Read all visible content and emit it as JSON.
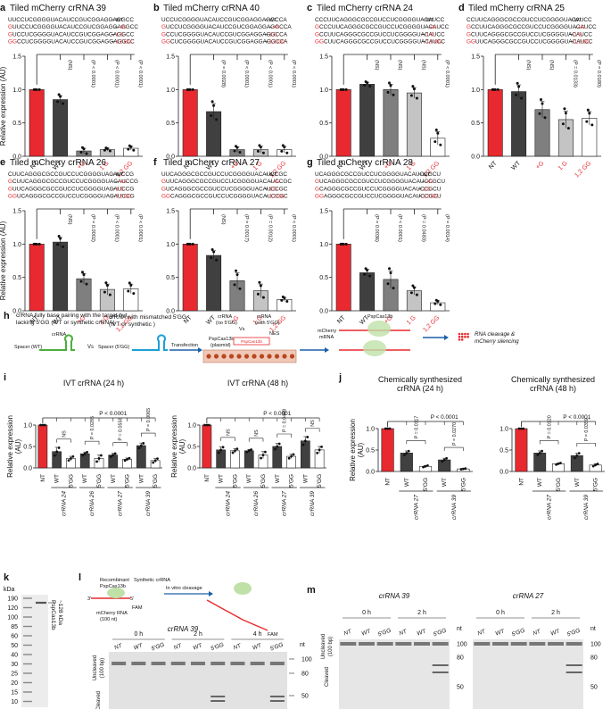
{
  "labels": {
    "wt": "WT",
    "g": "+G",
    "g1": "1 G",
    "g12": "1,2 GG",
    "nt": "NT",
    "ns": "NS",
    "ylab": "Relative expression (AU)",
    "ylab2": "Relative expression",
    "au": "(AU)"
  },
  "colors": {
    "red": "#e8292f",
    "dark": "#404040",
    "mid": "#7f7f7f",
    "light": "#c4c4c4",
    "white": "#ffffff",
    "seqred": "#e8292f",
    "diagblue": "#1aa0d8",
    "diaggreen": "#4caf3c"
  },
  "panels_top": [
    {
      "letter": "a",
      "title": "Tiled mCherry crRNA 39",
      "seqs": [
        "UUCCUCGGGGUACAUCCGUCGGAGGAGGCC",
        "GUUCCUCGGGGUACAUCCGUCGGAGGAGGCC",
        "GUCCUCGGGGUACAUCCGUCGGAGGAGGCC",
        "GGCCUCGGGGUACAUCCGUCGGAGGAGGCC"
      ],
      "values": [
        1.0,
        0.85,
        0.08,
        0.1,
        0.12
      ],
      "err": [
        0,
        0.06,
        0.04,
        0.02,
        0.03
      ],
      "pvals": [
        "(NS)",
        "(P < 0.0001)",
        "(P < 0.0001)",
        "(P < 0.0001)"
      ]
    },
    {
      "letter": "b",
      "title": "Tiled mCherry crRNA 40",
      "seqs": [
        "UCCUCGGGGUACAUCCGUCGGAGGAGGCCA",
        "GUCCUCGGGGUACAUCCGUCGGAGGAGGCCA",
        "GCCUCGGGGUACAUCCGUCGGAGGAGGCCA",
        "GGCUCGGGGUACAUCCGUCGGAGGAGGCCA"
      ],
      "values": [
        1.0,
        0.67,
        0.1,
        0.1,
        0.1
      ],
      "err": [
        0,
        0.12,
        0.04,
        0.05,
        0.05
      ],
      "pvals": [
        "(P = 0.0028)",
        "(P < 0.0001)",
        "(P < 0.0001)",
        "(P < 0.0001)"
      ]
    },
    {
      "letter": "c",
      "title": "Tiled mCherry crRNA 24",
      "seqs": [
        "CCCUUCAGGGCGCCGUCCUCGGGGUACAUCC",
        "GCCCUUCAGGGCGCCGUCCUCGGGGUACAUCC",
        "GCCUUCAGGGCGCCGUCCUCGGGGUACAUCC",
        "GGCUUCAGGGCGCCGUCCUCGGGGUACAUCC"
      ],
      "values": [
        1.0,
        1.08,
        1.0,
        0.95,
        0.27
      ],
      "err": [
        0,
        0.03,
        0.08,
        0.08,
        0.1
      ],
      "pvals": [
        "(NS)",
        "(NS)",
        "(NS)",
        "(P < 0.0001)"
      ]
    },
    {
      "letter": "d",
      "title": "Tiled mCherry crRNA 25",
      "seqs": [
        "CCUUCAGGGCGCCGUCCUCGGGGUACAUCC",
        "GCCUUCAGGGCGCCGUCCUCGGGGUACAUCC",
        "GCUUCAGGGCGCCGUCCUCGGGGUACAUCC",
        "GGUUCAGGGCGCCGUCCUCGGGGUACAUCC"
      ],
      "values": [
        1.0,
        0.97,
        0.7,
        0.55,
        0.57
      ],
      "err": [
        0,
        0.1,
        0.12,
        0.13,
        0.1
      ],
      "pvals": [
        "(NS)",
        "(NS)",
        "(P = 0.0133)",
        "(P = 0.0180)"
      ]
    }
  ],
  "panels_mid": [
    {
      "letter": "e",
      "title": "Tiled mCherry crRNA 26",
      "seqs": [
        "CUUCAGGGCGCCGUCCUCGGGGUACAUCCG",
        "GCUUCAGGGCGCCGUCCUCGGGGUACAUCCG",
        "GUUCAGGGCGCCGUCCUCGGGGUACAUCCG",
        "GGUCAGGGCGCCGUCCUCGGGGUACAUCCG"
      ],
      "values": [
        1.0,
        1.03,
        0.48,
        0.32,
        0.33
      ],
      "err": [
        0,
        0.07,
        0.08,
        0.08,
        0.07
      ],
      "pvals": [
        "(NS)",
        "(P = 0.0002)",
        "(P < 0.0001)",
        "(P < 0.0001)"
      ]
    },
    {
      "letter": "f",
      "title": "Tiled mCherry crRNA 27",
      "seqs": [
        "UUCAGGGCGCCGUCCUCGGGGUACAUCCGC",
        "GUUCAGGGCGCCGUCCUCGGGGUACAUCCGC",
        "GUCAGGGCGCCGUCCUCGGGGUACAUCCGC",
        "GGCAGGGCGCCGUCCUCGGGGUACAUCCGC"
      ],
      "values": [
        1.0,
        0.83,
        0.45,
        0.3,
        0.17
      ],
      "err": [
        0,
        0.07,
        0.12,
        0.1,
        0.03
      ],
      "pvals": [
        "(NS)",
        "(P = 0.0017)",
        "(P = 0.0012)",
        "(P < 0.0001)"
      ]
    },
    {
      "letter": "g",
      "title": "Tiled mCherry crRNA 28",
      "seqs": [
        "UCAGGGCGCCGUCCUCGGGGUACAUCCGCU",
        "GUCAGGGCGCCGUCCUCGGGGUACAUCCGCU",
        "GCAGGGCGCCGUCCUCGGGGUACAUCCGCU",
        "GGAGGGCGCCGUCCUCGGGGUACAUCCGCU"
      ],
      "values": [
        1.0,
        0.57,
        0.47,
        0.3,
        0.12
      ],
      "err": [
        0,
        0.05,
        0.13,
        0.06,
        0.03
      ],
      "pvals": [
        "(P = 0.0036)",
        "(P < 0.0001)",
        "(P = 0.0483)",
        "(P = 0.0014)"
      ]
    }
  ],
  "panel_h": {
    "letter": "h",
    "t1": "crRNA fully base pairing with the target but",
    "t2": "lacking  5'GG (IVT or synthetic crRNA)",
    "t3": "crRNA with mismatched 5'GG",
    "t4": "(IVT or synthetic )",
    "spacer_wt": "Spacer (WT)",
    "crrna": "crRNA",
    "vs": "Vs",
    "spacer_gg": "Spacer (5'GG)",
    "transfection": "Transfection",
    "plasmid1": "PspCas13b",
    "plasmid2": "(plasmid)",
    "nogg1": "crRNA",
    "nogg2": "(no 5'GG)",
    "withgg1": "crRNA",
    "withgg2": "(with 5'GG)",
    "nes": "NES",
    "cas": "PspCas13b",
    "mch1": "mCherry",
    "mch2": "mRNA",
    "out1": "RNA cleavage &",
    "out2": "mCherry silencing",
    "pspbox": "PspCas13b"
  },
  "panel_i": {
    "letter": "i",
    "charts": [
      {
        "title": "IVT crRNA (24 h)",
        "groups": [
          "crRNA 24",
          "crRNA 26",
          "crRNA 27",
          "crRNA 39"
        ],
        "values": [
          1.0,
          0.38,
          0.22,
          0.33,
          0.22,
          0.3,
          0.2,
          0.52,
          0.17
        ],
        "err": [
          0,
          0.1,
          0.05,
          0.04,
          0.08,
          0.04,
          0.03,
          0.06,
          0.05
        ],
        "pvals": [
          "NS",
          "P = 0.0285",
          "P = 0.0558",
          "P = 0.0065"
        ],
        "big": "P < 0.0001"
      },
      {
        "title": "IVT crRNA (48 h)",
        "groups": [
          "crRNA 24",
          "crRNA 26",
          "crRNA 27",
          "crRNA 39"
        ],
        "values": [
          1.0,
          0.42,
          0.4,
          0.4,
          0.3,
          0.5,
          0.27,
          0.63,
          0.42
        ],
        "err": [
          0,
          0.07,
          0.05,
          0.03,
          0.08,
          0.07,
          0.05,
          0.1,
          0.08
        ],
        "pvals": [
          "NS",
          "NS",
          "P = 0.0468",
          "NS"
        ],
        "big": "P < 0.0001"
      }
    ]
  },
  "panel_j": {
    "letter": "j",
    "charts": [
      {
        "title1": "Chemically synthesized",
        "title2": "crRNA (24 h)",
        "groups": [
          "crRNA 27",
          "crRNA 39"
        ],
        "values": [
          1.0,
          0.43,
          0.12,
          0.27,
          0.06
        ],
        "err": [
          0,
          0.05,
          0.02,
          0.04,
          0.01
        ],
        "pvals": [
          "P = 0.0117",
          "P = 0.0270"
        ],
        "big": "P < 0.0001"
      },
      {
        "title1": "Chemically synthesized",
        "title2": "crRNA (48 h)",
        "groups": [
          "crRNA 27",
          "crRNA 39"
        ],
        "values": [
          1.0,
          0.43,
          0.18,
          0.37,
          0.15
        ],
        "err": [
          0,
          0.05,
          0.02,
          0.06,
          0.03
        ],
        "pvals": [
          "P = 0.0120",
          "P = 0.0359"
        ],
        "big": "P < 0.0001"
      }
    ]
  },
  "panel_k": {
    "letter": "k",
    "unit": "kDa",
    "marker": "PspCas13b",
    "marker2": "~128 kDa",
    "ladder": [
      190,
      120,
      100,
      85,
      60,
      50,
      40,
      30,
      25,
      20,
      15,
      10
    ]
  },
  "panel_l": {
    "letter": "l",
    "recomb1": "Recombinant",
    "recomb2": "PspCas13b",
    "synth": "Synthetic crRNA",
    "prime3": "3'",
    "prime5": "5'",
    "fam": "FAM",
    "mch1": "mCherry RNA",
    "mch2": "(100 nt)",
    "invitro": "In vitro cleavage",
    "fam2": "FAM",
    "gtitle": "crRNA 39",
    "times": [
      "0 h",
      "2 h",
      "4 h"
    ],
    "lanes": [
      "NT",
      "WT",
      "5'GG",
      "NT",
      "WT",
      "5'GG",
      "NT",
      "WT",
      "5'GG"
    ],
    "uncleaved1": "Uncleaved",
    "uncleaved2": "(100 bp)",
    "cleaved": "Cleaved",
    "nt": "nt",
    "ticks": [
      100,
      80,
      50
    ]
  },
  "panel_m": {
    "letter": "m",
    "gtitle1": "crRNA 39",
    "gtitle2": "crRNA 27",
    "times": [
      "0 h",
      "2 h"
    ],
    "lanes": [
      "NT",
      "WT",
      "5'GG"
    ],
    "uncleaved1": "Uncleaved",
    "uncleaved2": "(100 bp)",
    "cleaved": "Cleaved",
    "nt": "nt",
    "ticks": [
      100,
      80,
      50
    ]
  }
}
